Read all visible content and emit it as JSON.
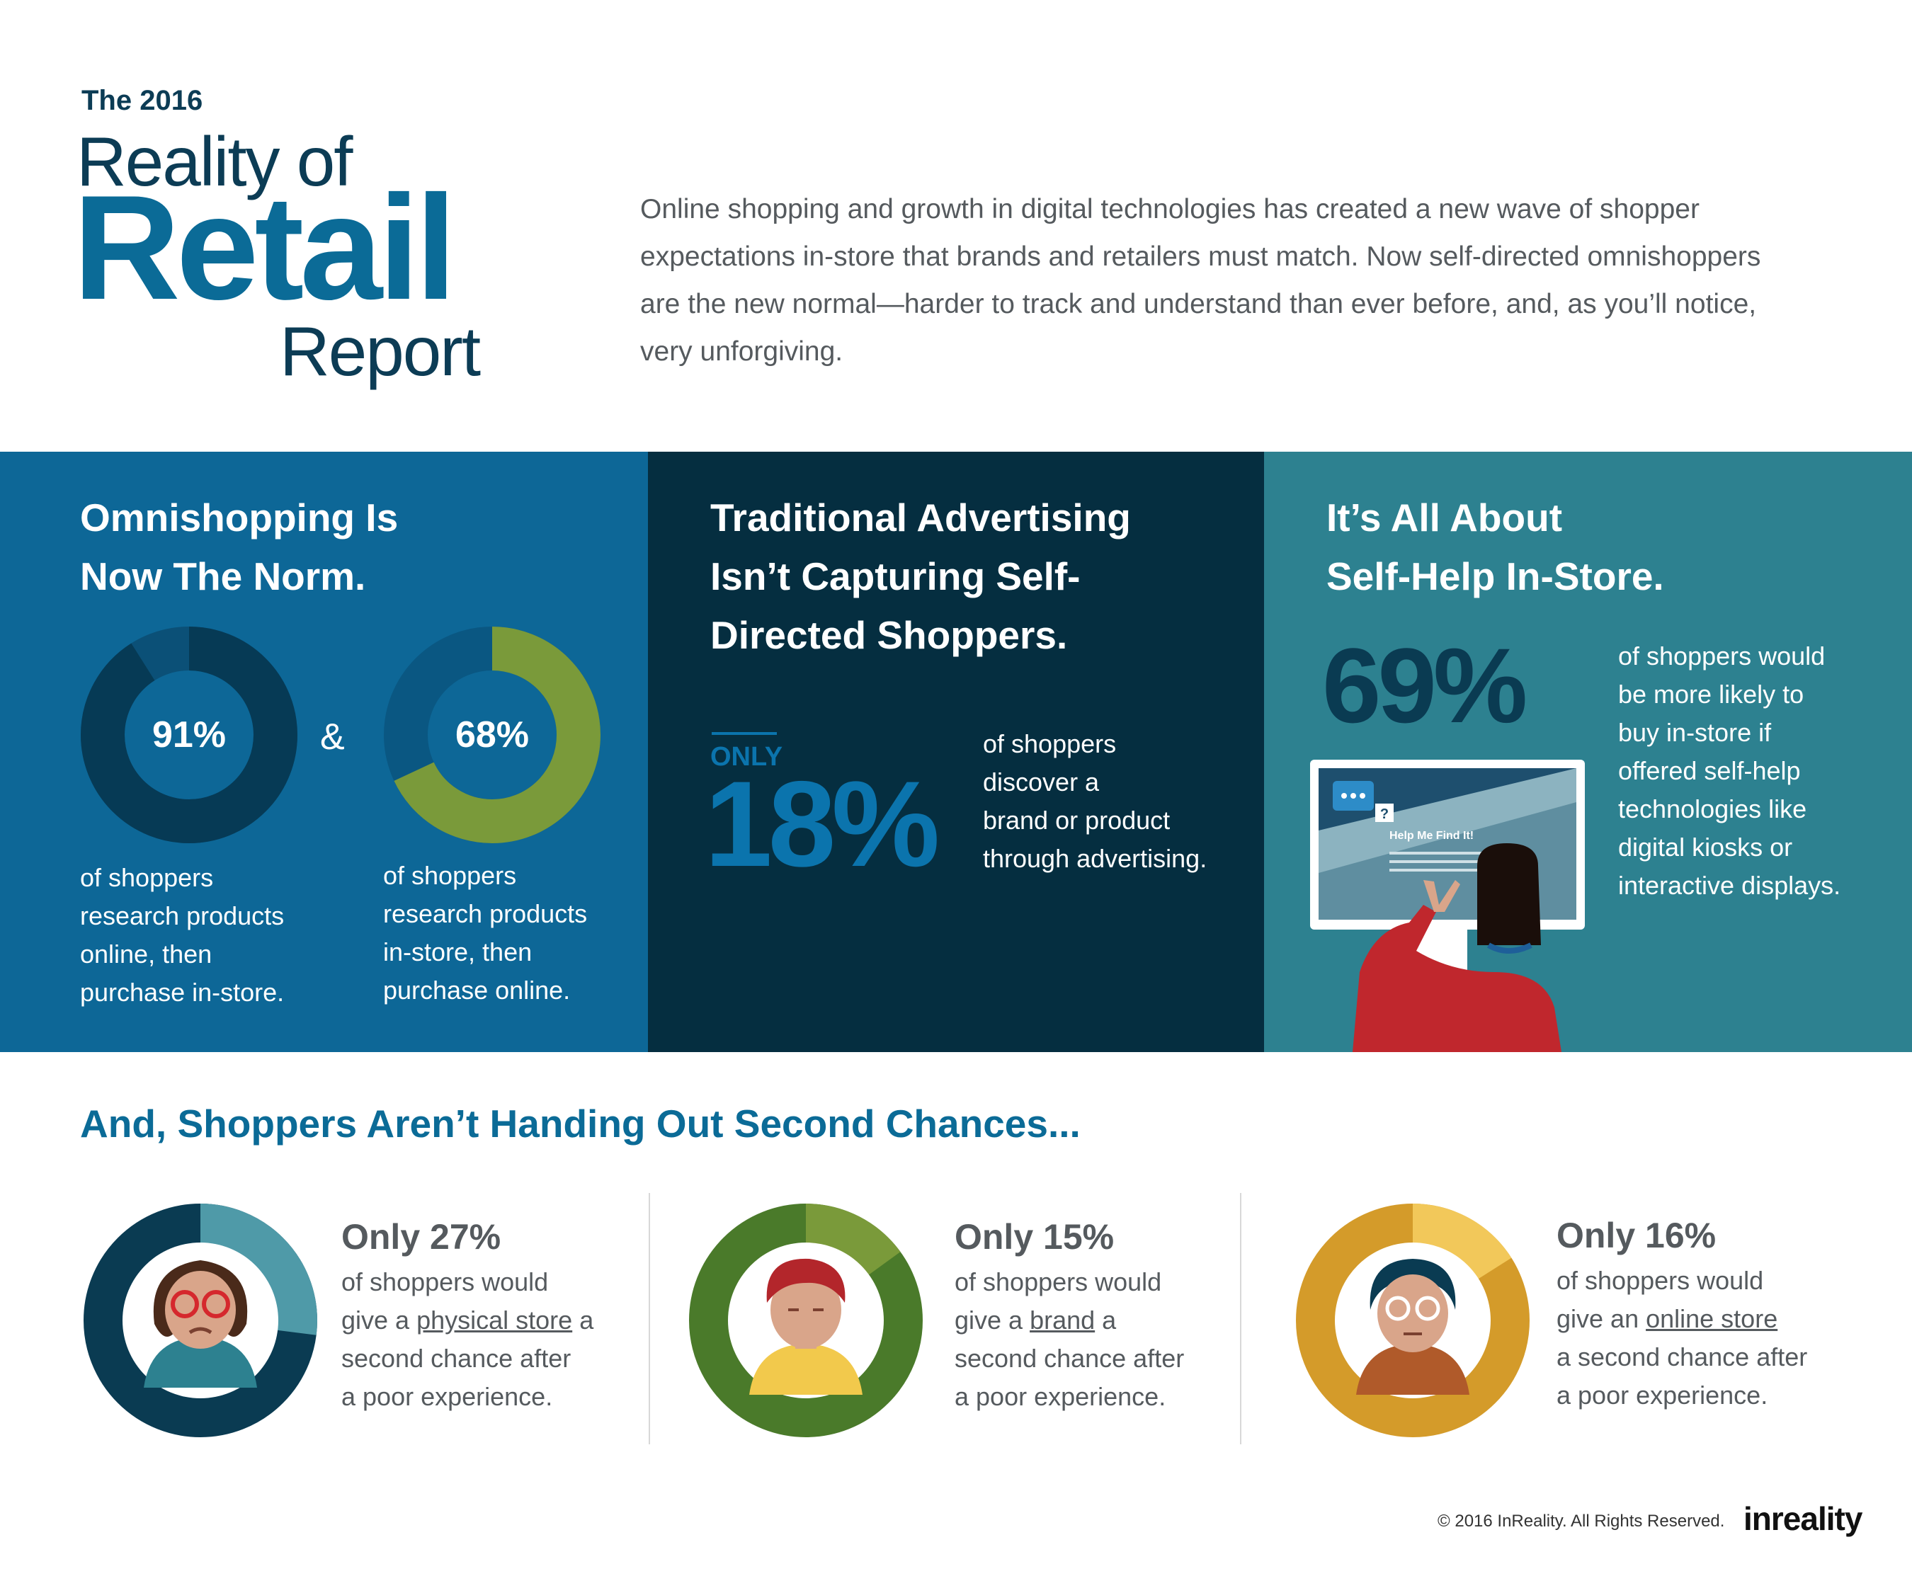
{
  "header": {
    "kicker": "The 2016",
    "title_line1": "Reality of",
    "title_line2": "Retail",
    "title_line3": "Report",
    "intro": "Online shopping and growth in digital technologies has created a new wave of shopper expectations in-store that brands and retailers must match. Now self-directed omnishoppers are the new normal—harder to track and understand than ever before, and, as you’ll notice, very unforgiving."
  },
  "omni": {
    "title_line1": "Omnishopping Is",
    "title_line2": "Now The Norm.",
    "donut1_value": "91%",
    "donut1_fraction": 0.91,
    "ampersand": "&",
    "donut2_value": "68%",
    "donut2_fraction": 0.68,
    "text1_lines": [
      "of shoppers",
      "research products",
      "online, then",
      "purchase in-store."
    ],
    "text2_lines": [
      "of shoppers",
      "research products",
      "in-store, then",
      "purchase online."
    ]
  },
  "ads": {
    "title_lines": [
      "Traditional Advertising",
      "Isn’t Capturing Self-",
      "Directed Shoppers."
    ],
    "only_label": "ONLY",
    "big_value": "18%",
    "text_lines": [
      "of shoppers",
      "discover a",
      "brand or product",
      "through advertising."
    ]
  },
  "selfhelp": {
    "title_line1": "It’s All About",
    "title_line2": "Self-Help In-Store.",
    "big_value": "69%",
    "text_lines": [
      "of shoppers would",
      "be more likely to",
      "buy in-store if",
      "offered self-help",
      "technologies like",
      "digital kiosks or",
      "interactive displays."
    ],
    "screen_text": "Help Me Find It!",
    "question_mark": "?"
  },
  "chances": {
    "heading": "And, Shoppers Aren’t Handing Out Second Chances...",
    "items": [
      {
        "title": "Only 27%",
        "fraction": 0.27,
        "line1": "of shoppers would",
        "line2_pre": "give a ",
        "line2_link": "physical store",
        "line2_post": " a",
        "line3": "second chance after",
        "line4": "a poor experience."
      },
      {
        "title": "Only 15%",
        "fraction": 0.15,
        "line1": "of shoppers would",
        "line2_pre": "give a ",
        "line2_link": "brand",
        "line2_post": " a",
        "line3": "second chance after",
        "line4": "a poor experience."
      },
      {
        "title": "Only 16%",
        "fraction": 0.16,
        "line1": "of shoppers would",
        "line2_pre": "give an ",
        "line2_link": "online store",
        "line2_post": "",
        "line3": "a second chance after",
        "line4": "a poor experience."
      }
    ]
  },
  "footer": {
    "copyright": "© 2016 InReality. All Rights Reserved.",
    "logo": "inreality"
  },
  "colors": {
    "blue": "#0d6797",
    "navy": "#052e40",
    "teal": "#2d8190",
    "green": "#7a9a3a",
    "gold": "#d49b2a",
    "heading_blue": "#0b6b97"
  }
}
